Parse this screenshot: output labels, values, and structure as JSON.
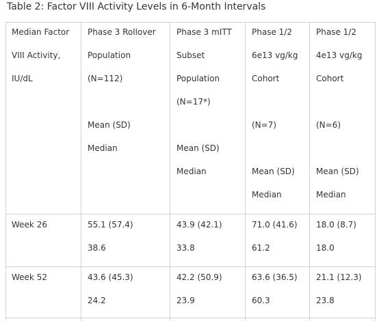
{
  "title": "Table 2:  Factor VIII Activity Levels in 6-Month Intervals",
  "table": {
    "header": [
      [
        "Median Factor",
        "VIII Activity,",
        "IU/dL"
      ],
      [
        "Phase 3 Rollover",
        "Population",
        "(N=112)",
        "Mean (SD)",
        "Median"
      ],
      [
        "Phase 3 mITT",
        "Subset",
        "Population",
        "(N=17*)",
        "Mean (SD)",
        "Median"
      ],
      [
        "Phase 1/2",
        "6e13 vg/kg",
        "Cohort",
        "(N=7)",
        "Mean (SD)",
        "Median"
      ],
      [
        "Phase 1/2",
        "4e13 vg/kg",
        "Cohort",
        "(N=6)",
        "Mean (SD)",
        "Median"
      ]
    ],
    "rows": [
      [
        "Week 26",
        [
          "55.1 (57.4)",
          "38.6"
        ],
        [
          "43.9 (42.1)",
          "33.8"
        ],
        [
          "71.0 (41.6)",
          "61.2"
        ],
        [
          "18.0 (8.7)",
          "18.0"
        ]
      ],
      [
        "Week 52",
        [
          "43.6 (45.3)",
          "24.2"
        ],
        [
          "42.2 (50.9)",
          "23.9"
        ],
        [
          "63.6 (36.5)",
          "60.3"
        ],
        [
          "21.1 (12.3)",
          "23.8"
        ]
      ]
    ]
  }
}
